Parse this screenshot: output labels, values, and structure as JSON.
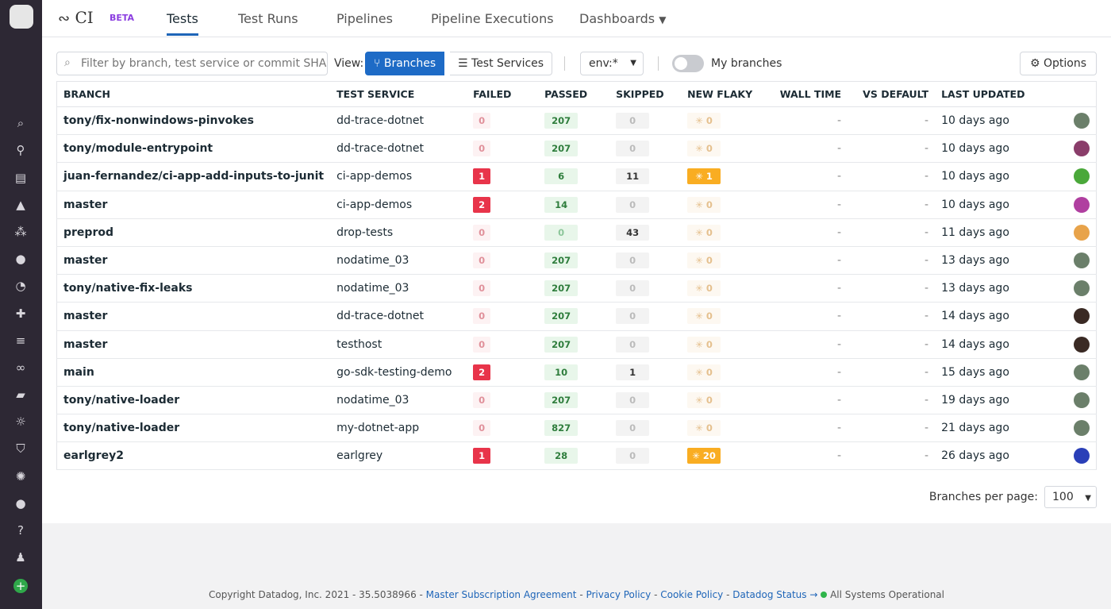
{
  "app": {
    "title": "CI",
    "badge": "BETA"
  },
  "nav": {
    "tabs": [
      {
        "label": "Tests"
      },
      {
        "label": "Test Runs"
      },
      {
        "label": "Pipelines"
      },
      {
        "label": "Pipeline Executions"
      },
      {
        "label": "Dashboards"
      }
    ]
  },
  "toolbar": {
    "search_placeholder": "Filter by branch, test service or commit SHA",
    "view_label": "View:",
    "branches": "Branches",
    "test_services": "Test Services",
    "env": "env:*",
    "my_branches": "My branches",
    "options": "Options"
  },
  "table": {
    "headers": [
      "BRANCH",
      "TEST SERVICE",
      "FAILED",
      "PASSED",
      "SKIPPED",
      "NEW FLAKY",
      "WALL TIME",
      "VS DEFAULT",
      "LAST UPDATED"
    ],
    "rows": [
      {
        "branch": "tony/fix-nonwindows-pinvokes",
        "service": "dd-trace-dotnet",
        "failed": "0",
        "passed": "207",
        "skipped": "0",
        "flaky": "0",
        "wall": "-",
        "vs": "-",
        "updated": "10 days ago",
        "avatar": "#6b7f6a"
      },
      {
        "branch": "tony/module-entrypoint",
        "service": "dd-trace-dotnet",
        "failed": "0",
        "passed": "207",
        "skipped": "0",
        "flaky": "0",
        "wall": "-",
        "vs": "-",
        "updated": "10 days ago",
        "avatar": "#8a3d6a"
      },
      {
        "branch": "juan-fernandez/ci-app-add-inputs-to-junit",
        "service": "ci-app-demos",
        "failed": "1",
        "passed": "6",
        "skipped": "11",
        "flaky": "1",
        "wall": "-",
        "vs": "-",
        "updated": "10 days ago",
        "avatar": "#4aa83a"
      },
      {
        "branch": "master",
        "service": "ci-app-demos",
        "failed": "2",
        "passed": "14",
        "skipped": "0",
        "flaky": "0",
        "wall": "-",
        "vs": "-",
        "updated": "10 days ago",
        "avatar": "#b03fa0"
      },
      {
        "branch": "preprod",
        "service": "drop-tests",
        "failed": "0",
        "passed": "0",
        "skipped": "43",
        "flaky": "0",
        "wall": "-",
        "vs": "-",
        "updated": "11 days ago",
        "avatar": "#e8a34a"
      },
      {
        "branch": "master",
        "service": "nodatime_03",
        "failed": "0",
        "passed": "207",
        "skipped": "0",
        "flaky": "0",
        "wall": "-",
        "vs": "-",
        "updated": "13 days ago",
        "avatar": "#6b7f6a"
      },
      {
        "branch": "tony/native-fix-leaks",
        "service": "nodatime_03",
        "failed": "0",
        "passed": "207",
        "skipped": "0",
        "flaky": "0",
        "wall": "-",
        "vs": "-",
        "updated": "13 days ago",
        "avatar": "#6b7f6a"
      },
      {
        "branch": "master",
        "service": "dd-trace-dotnet",
        "failed": "0",
        "passed": "207",
        "skipped": "0",
        "flaky": "0",
        "wall": "-",
        "vs": "-",
        "updated": "14 days ago",
        "avatar": "#3a2a24"
      },
      {
        "branch": "master",
        "service": "testhost",
        "failed": "0",
        "passed": "207",
        "skipped": "0",
        "flaky": "0",
        "wall": "-",
        "vs": "-",
        "updated": "14 days ago",
        "avatar": "#3a2a24"
      },
      {
        "branch": "main",
        "service": "go-sdk-testing-demo",
        "failed": "2",
        "passed": "10",
        "skipped": "1",
        "flaky": "0",
        "wall": "-",
        "vs": "-",
        "updated": "15 days ago",
        "avatar": "#6b7f6a"
      },
      {
        "branch": "tony/native-loader",
        "service": "nodatime_03",
        "failed": "0",
        "passed": "207",
        "skipped": "0",
        "flaky": "0",
        "wall": "-",
        "vs": "-",
        "updated": "19 days ago",
        "avatar": "#6b7f6a"
      },
      {
        "branch": "tony/native-loader",
        "service": "my-dotnet-app",
        "failed": "0",
        "passed": "827",
        "skipped": "0",
        "flaky": "0",
        "wall": "-",
        "vs": "-",
        "updated": "21 days ago",
        "avatar": "#6b7f6a"
      },
      {
        "branch": "earlgrey2",
        "service": "earlgrey",
        "failed": "1",
        "passed": "28",
        "skipped": "0",
        "flaky": "20",
        "wall": "-",
        "vs": "-",
        "updated": "26 days ago",
        "avatar": "#2a3fb8"
      }
    ]
  },
  "pager": {
    "label": "Branches per page:",
    "value": "100"
  },
  "footer": {
    "copyright": "Copyright Datadog, Inc. 2021 - 35.5038966 - ",
    "msa": "Master Subscription Agreement",
    "privacy": "Privacy Policy",
    "cookie": "Cookie Policy",
    "status": "Datadog Status",
    "ops": "All Systems Operational"
  },
  "colors": {
    "accent": "#1e6bc6",
    "failed": "#e8344a",
    "flaky": "#f9ad22",
    "sidebar": "#2d2834"
  }
}
